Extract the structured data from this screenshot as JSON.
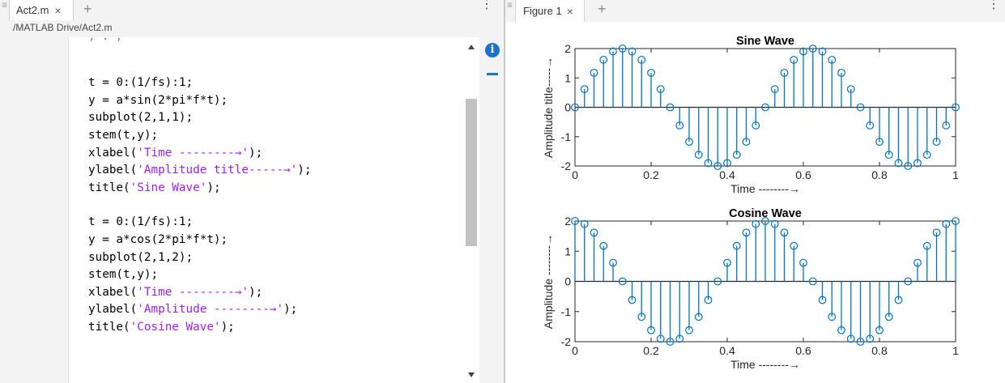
{
  "editor": {
    "tab_label": "Act2.m",
    "tab_close": "×",
    "add_tab": "+",
    "more": "⋮",
    "path": "/MATLAB Drive/Act2.m",
    "cut_off_line": ",          .    ,",
    "code_block_1": {
      "l1": "t = 0:(1/fs):1;",
      "l2": "y = a*sin(2*pi*f*t);",
      "l3": "subplot(2,1,1);",
      "l4": "stem(t,y);",
      "l5_pre": "xlabel(",
      "l5_str": "'Time --------→'",
      "l5_post": ");",
      "l6_pre": "ylabel(",
      "l6_str": "'Amplitude title-----→'",
      "l6_post": ");",
      "l7_pre": "title(",
      "l7_str": "'Sine Wave'",
      "l7_post": ");"
    },
    "code_block_2": {
      "l1": "t = 0:(1/fs):1;",
      "l2": "y = a*cos(2*pi*f*t);",
      "l3": "subplot(2,1,2);",
      "l4": "stem(t,y);",
      "l5_pre": "xlabel(",
      "l5_str": "'Time --------→'",
      "l5_post": ");",
      "l6_pre": "ylabel(",
      "l6_str": "'Amplitude --------→'",
      "l6_post": ");",
      "l7_pre": "title(",
      "l7_str": "'Cosine Wave'",
      "l7_post": ");"
    },
    "info_icon": "i"
  },
  "figure": {
    "tab_label": "Figure 1",
    "tab_close": "×",
    "add_tab": "+",
    "more": "⋮"
  },
  "colors": {
    "stem": "#0072bd",
    "string": "#a020f0",
    "accent": "#1a73c8"
  },
  "chart_data": [
    {
      "type": "stem",
      "title": "Sine Wave",
      "xlabel": "Time --------→",
      "ylabel": "Amplitude title-----→",
      "xlim": [
        0,
        1
      ],
      "ylim": [
        -2,
        2
      ],
      "xticks": [
        0,
        0.2,
        0.4,
        0.6,
        0.8,
        1
      ],
      "xtick_labels": [
        "0",
        "0.2",
        "0.4",
        "0.6",
        "0.8",
        "1"
      ],
      "yticks": [
        -2,
        -1,
        0,
        1,
        2
      ],
      "ytick_labels": [
        "-2",
        "-1",
        "0",
        "1",
        "2"
      ],
      "x": [
        0,
        0.025,
        0.05,
        0.075,
        0.1,
        0.125,
        0.15,
        0.175,
        0.2,
        0.225,
        0.25,
        0.275,
        0.3,
        0.325,
        0.35,
        0.375,
        0.4,
        0.425,
        0.45,
        0.475,
        0.5,
        0.525,
        0.55,
        0.575,
        0.6,
        0.625,
        0.65,
        0.675,
        0.7,
        0.725,
        0.75,
        0.775,
        0.8,
        0.825,
        0.85,
        0.875,
        0.9,
        0.925,
        0.95,
        0.975,
        1
      ],
      "y": [
        0,
        0.618,
        1.176,
        1.618,
        1.902,
        2,
        1.902,
        1.618,
        1.176,
        0.618,
        0,
        -0.618,
        -1.176,
        -1.618,
        -1.902,
        -2,
        -1.902,
        -1.618,
        -1.176,
        -0.618,
        0,
        0.618,
        1.176,
        1.618,
        1.902,
        2,
        1.902,
        1.618,
        1.176,
        0.618,
        0,
        -0.618,
        -1.176,
        -1.618,
        -1.902,
        -2,
        -1.902,
        -1.618,
        -1.176,
        -0.618,
        0
      ]
    },
    {
      "type": "stem",
      "title": "Cosine Wave",
      "xlabel": "Time --------→",
      "ylabel": "Amplitude --------→",
      "xlim": [
        0,
        1
      ],
      "ylim": [
        -2,
        2
      ],
      "xticks": [
        0,
        0.2,
        0.4,
        0.6,
        0.8,
        1
      ],
      "xtick_labels": [
        "0",
        "0.2",
        "0.4",
        "0.6",
        "0.8",
        "1"
      ],
      "yticks": [
        -2,
        -1,
        0,
        1,
        2
      ],
      "ytick_labels": [
        "-2",
        "-1",
        "0",
        "1",
        "2"
      ],
      "x": [
        0,
        0.025,
        0.05,
        0.075,
        0.1,
        0.125,
        0.15,
        0.175,
        0.2,
        0.225,
        0.25,
        0.275,
        0.3,
        0.325,
        0.35,
        0.375,
        0.4,
        0.425,
        0.45,
        0.475,
        0.5,
        0.525,
        0.55,
        0.575,
        0.6,
        0.625,
        0.65,
        0.675,
        0.7,
        0.725,
        0.75,
        0.775,
        0.8,
        0.825,
        0.85,
        0.875,
        0.9,
        0.925,
        0.95,
        0.975,
        1
      ],
      "y": [
        2,
        1.902,
        1.618,
        1.176,
        0.618,
        0,
        -0.618,
        -1.176,
        -1.618,
        -1.902,
        -2,
        -1.902,
        -1.618,
        -1.176,
        -0.618,
        0,
        0.618,
        1.176,
        1.618,
        1.902,
        2,
        1.902,
        1.618,
        1.176,
        0.618,
        0,
        -0.618,
        -1.176,
        -1.618,
        -1.902,
        -2,
        -1.902,
        -1.618,
        -1.176,
        -0.618,
        0,
        0.618,
        1.176,
        1.618,
        1.902,
        2
      ]
    }
  ]
}
